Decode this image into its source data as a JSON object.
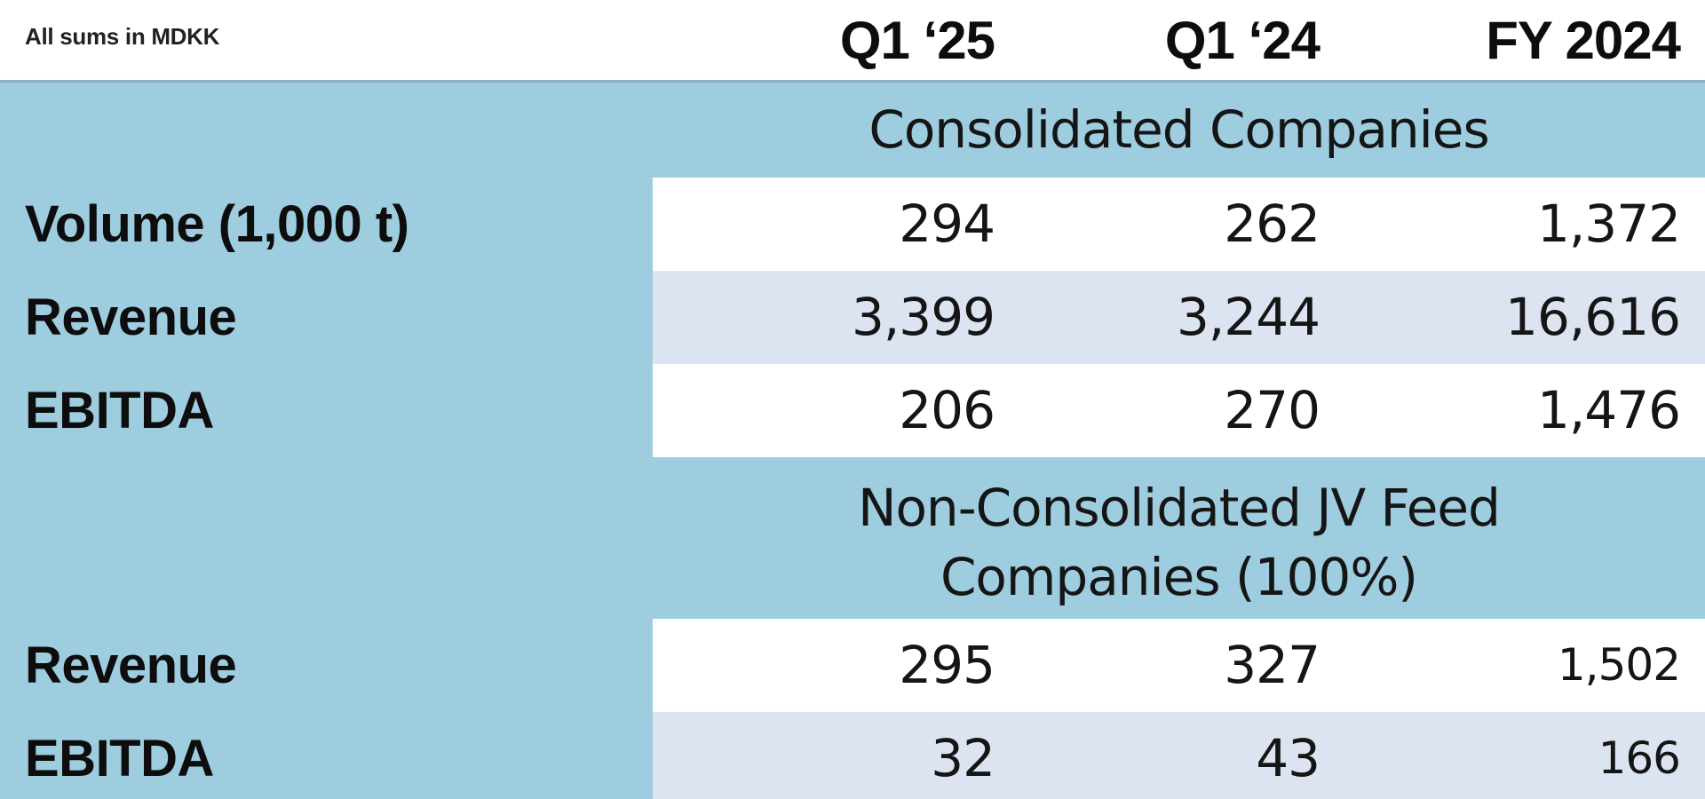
{
  "header": {
    "units_note": "All sums in MDKK",
    "columns": [
      "Q1 ‘25",
      "Q1 ‘24",
      "FY 2024"
    ]
  },
  "sections": [
    {
      "title": "Consolidated Companies",
      "rows": [
        {
          "label": "Volume (1,000 t)",
          "values": [
            "294",
            "262",
            "1,372"
          ]
        },
        {
          "label": "Revenue",
          "values": [
            "3,399",
            "3,244",
            "16,616"
          ]
        },
        {
          "label": "EBITDA",
          "values": [
            "206",
            "270",
            "1,476"
          ]
        }
      ]
    },
    {
      "title_line1": "Non-Consolidated JV Feed",
      "title_line2": "Companies (100%)",
      "rows": [
        {
          "label": "Revenue",
          "values": [
            "295",
            "327",
            "1,502"
          ]
        },
        {
          "label": "EBITDA",
          "values": [
            "32",
            "43",
            "166"
          ]
        }
      ]
    }
  ],
  "colors": {
    "section_background": "#9dcdde",
    "row_white": "#ffffff",
    "row_light": "#dde4f1",
    "header_rule": "#8fb1c4"
  }
}
